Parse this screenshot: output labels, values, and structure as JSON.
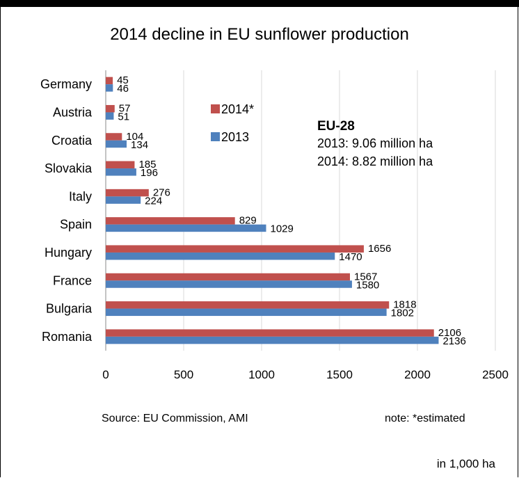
{
  "chart_data": {
    "type": "bar",
    "orientation": "horizontal",
    "title": "2014 decline in EU sunflower production",
    "categories": [
      "Germany",
      "Austria",
      "Croatia",
      "Slovakia",
      "Italy",
      "Spain",
      "Hungary",
      "France",
      "Bulgaria",
      "Romania"
    ],
    "series": [
      {
        "name": "2014*",
        "color": "#c0504d",
        "values": [
          45,
          57,
          104,
          185,
          276,
          829,
          1656,
          1567,
          1818,
          2106
        ]
      },
      {
        "name": "2013",
        "color": "#4f81bd",
        "values": [
          46,
          51,
          134,
          196,
          224,
          1029,
          1470,
          1580,
          1802,
          2136
        ]
      }
    ],
    "xlim": [
      0,
      2500
    ],
    "xticks": [
      "0",
      "500",
      "1000",
      "1500",
      "2000",
      "2500"
    ],
    "xunit": "in 1,000  ha",
    "grid": "vertical"
  },
  "annotation": {
    "title": "EU-28",
    "lines": [
      "2013:  9.06  million ha",
      "2014:  8.82  million ha"
    ]
  },
  "footer": {
    "source": "Source:  EU Commission, AMI",
    "note": "note: *estimated"
  }
}
